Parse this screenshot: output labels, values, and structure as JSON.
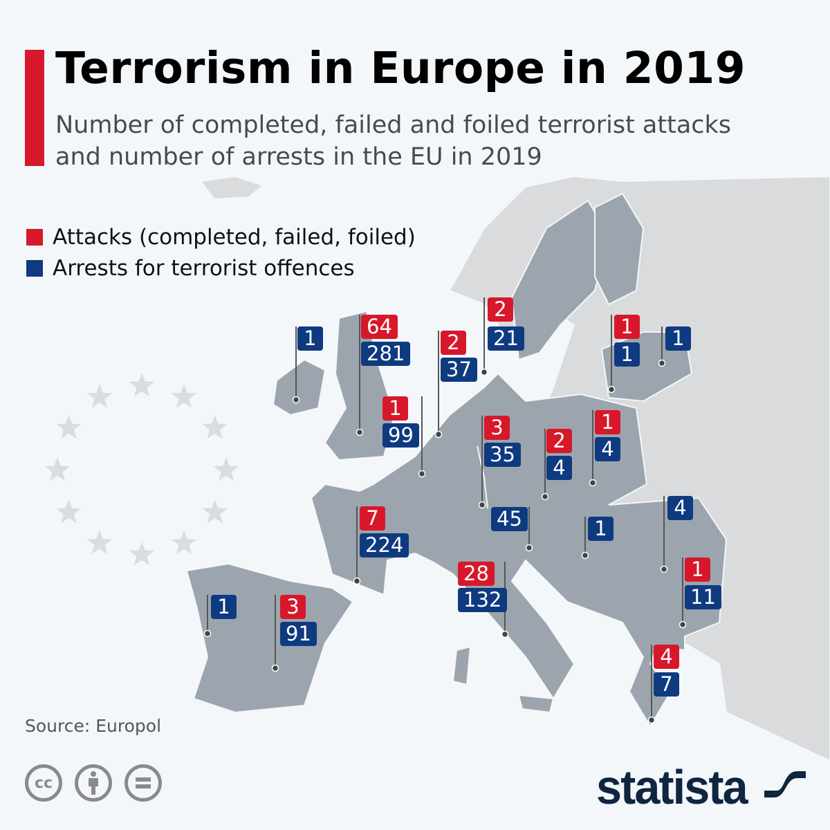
{
  "header": {
    "title": "Terrorism in Europe in 2019",
    "subtitle": "Number of completed, failed and foiled terrorist attacks and number of arrests in the EU in 2019"
  },
  "legend": [
    {
      "label": "Attacks (completed, failed, foiled)",
      "color": "#d7182a"
    },
    {
      "label": "Arrests for terrorist offences",
      "color": "#0e3a80"
    }
  ],
  "colors": {
    "eu_land": "#9ca5ae",
    "non_eu_land": "#d9dbdd",
    "background": "#f4f7fa",
    "stars": "#d9dde1"
  },
  "markers": [
    {
      "attacks": null,
      "arrests": "1"
    },
    {
      "attacks": "64",
      "arrests": "281"
    },
    {
      "attacks": "1",
      "arrests": "99"
    },
    {
      "attacks": "2",
      "arrests": "37"
    },
    {
      "attacks": "2",
      "arrests": "21"
    },
    {
      "attacks": "3",
      "arrests": "35"
    },
    {
      "attacks": "2",
      "arrests": "4"
    },
    {
      "attacks": "1",
      "arrests": "4"
    },
    {
      "attacks": "1",
      "arrests": "1"
    },
    {
      "attacks": null,
      "arrests": "1"
    },
    {
      "attacks": null,
      "arrests": "45"
    },
    {
      "attacks": null,
      "arrests": "1"
    },
    {
      "attacks": null,
      "arrests": "4"
    },
    {
      "attacks": "1",
      "arrests": "11"
    },
    {
      "attacks": "4",
      "arrests": "7"
    },
    {
      "attacks": "28",
      "arrests": "132"
    },
    {
      "attacks": "7",
      "arrests": "224"
    },
    {
      "attacks": "3",
      "arrests": "91"
    },
    {
      "attacks": null,
      "arrests": "1"
    }
  ],
  "footer": {
    "source": "Source: Europol",
    "license_icons": [
      "cc-icon",
      "attribution-icon",
      "no-derivatives-icon"
    ],
    "logo": "statista"
  }
}
